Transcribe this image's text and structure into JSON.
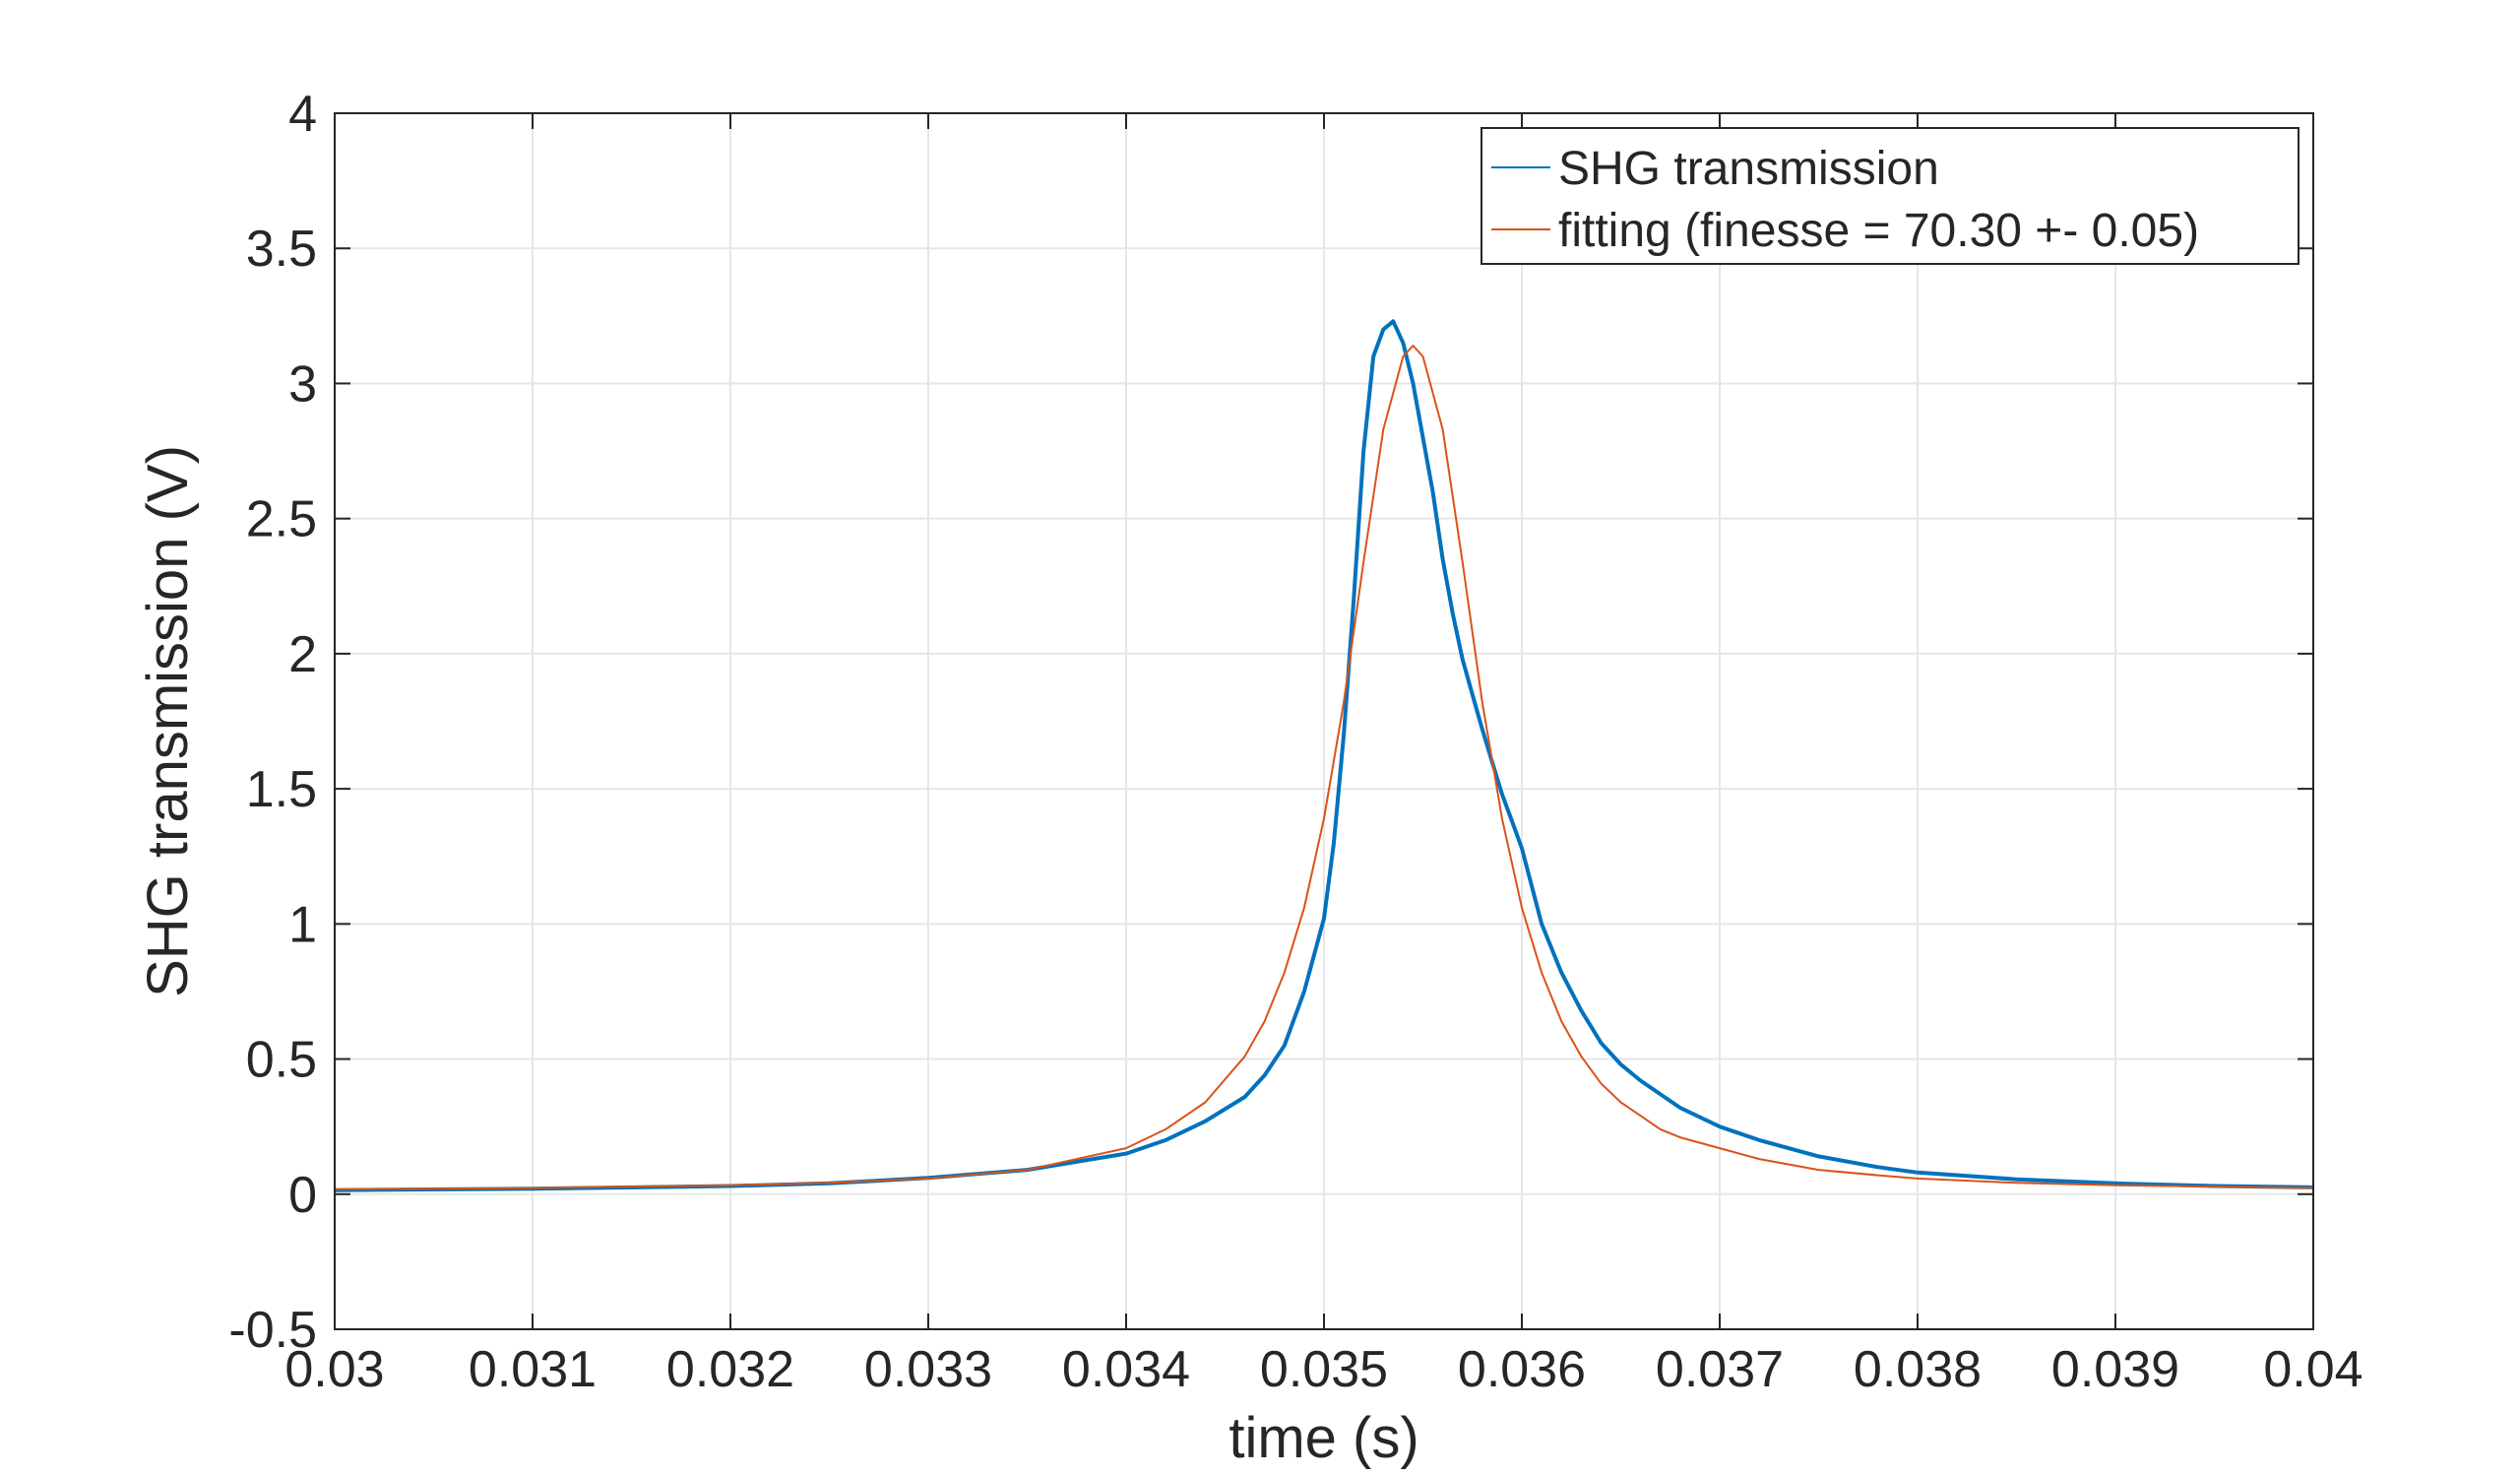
{
  "chart_data": {
    "type": "line",
    "title": "",
    "xlabel": "time (s)",
    "ylabel": "SHG transmission (V)",
    "xlim": [
      0.03,
      0.04
    ],
    "ylim": [
      -0.5,
      4
    ],
    "xticks": [
      0.03,
      0.031,
      0.032,
      0.033,
      0.034,
      0.035,
      0.036,
      0.037,
      0.038,
      0.039,
      0.04
    ],
    "xtick_labels": [
      "0.03",
      "0.031",
      "0.032",
      "0.033",
      "0.034",
      "0.035",
      "0.036",
      "0.037",
      "0.038",
      "0.039",
      "0.04"
    ],
    "yticks": [
      -0.5,
      0,
      0.5,
      1,
      1.5,
      2,
      2.5,
      3,
      3.5,
      4
    ],
    "ytick_labels": [
      "-0.5",
      "0",
      "0.5",
      "1",
      "1.5",
      "2",
      "2.5",
      "3",
      "3.5",
      "4"
    ],
    "grid": true,
    "legend_position": "top-right",
    "series": [
      {
        "name": "SHG transmission",
        "color": "#0072BD",
        "x": [
          0.03,
          0.031,
          0.032,
          0.0325,
          0.033,
          0.0335,
          0.034,
          0.0342,
          0.0344,
          0.0346,
          0.0347,
          0.0348,
          0.0349,
          0.035,
          0.03505,
          0.0351,
          0.03515,
          0.0352,
          0.03525,
          0.0353,
          0.03535,
          0.0354,
          0.03545,
          0.0355,
          0.03555,
          0.0356,
          0.03565,
          0.0357,
          0.03575,
          0.0358,
          0.03585,
          0.0359,
          0.03595,
          0.036,
          0.0361,
          0.0362,
          0.0363,
          0.0364,
          0.0365,
          0.0366,
          0.0368,
          0.037,
          0.0372,
          0.0375,
          0.0378,
          0.038,
          0.0385,
          0.039,
          0.0395,
          0.04
        ],
        "y": [
          0.015,
          0.02,
          0.03,
          0.04,
          0.06,
          0.09,
          0.15,
          0.2,
          0.27,
          0.36,
          0.44,
          0.55,
          0.75,
          1.02,
          1.3,
          1.7,
          2.2,
          2.75,
          3.1,
          3.2,
          3.23,
          3.15,
          3.0,
          2.8,
          2.6,
          2.35,
          2.15,
          1.98,
          1.85,
          1.72,
          1.6,
          1.48,
          1.38,
          1.28,
          1.0,
          0.82,
          0.68,
          0.56,
          0.48,
          0.42,
          0.32,
          0.25,
          0.2,
          0.14,
          0.1,
          0.08,
          0.055,
          0.04,
          0.03,
          0.025
        ]
      },
      {
        "name": "fitting (finesse = 70.30 +- 0.05)",
        "color": "#D95319",
        "x": [
          0.03,
          0.0305,
          0.031,
          0.0315,
          0.032,
          0.0325,
          0.033,
          0.0335,
          0.034,
          0.0342,
          0.0344,
          0.0346,
          0.0347,
          0.0348,
          0.0349,
          0.035,
          0.0351,
          0.0352,
          0.0353,
          0.0354,
          0.03545,
          0.0355,
          0.0356,
          0.0357,
          0.0358,
          0.0359,
          0.036,
          0.0361,
          0.0362,
          0.0363,
          0.0364,
          0.0365,
          0.0366,
          0.0367,
          0.0368,
          0.037,
          0.0372,
          0.0375,
          0.0378,
          0.038,
          0.0385,
          0.039,
          0.0395,
          0.04
        ],
        "y": [
          0.018,
          0.02,
          0.023,
          0.028,
          0.033,
          0.042,
          0.058,
          0.09,
          0.17,
          0.24,
          0.34,
          0.51,
          0.64,
          0.82,
          1.06,
          1.39,
          1.82,
          2.34,
          2.83,
          3.1,
          3.14,
          3.1,
          2.83,
          2.34,
          1.82,
          1.39,
          1.06,
          0.82,
          0.64,
          0.51,
          0.41,
          0.34,
          0.29,
          0.24,
          0.21,
          0.17,
          0.13,
          0.09,
          0.07,
          0.058,
          0.042,
          0.033,
          0.028,
          0.023
        ]
      }
    ]
  }
}
